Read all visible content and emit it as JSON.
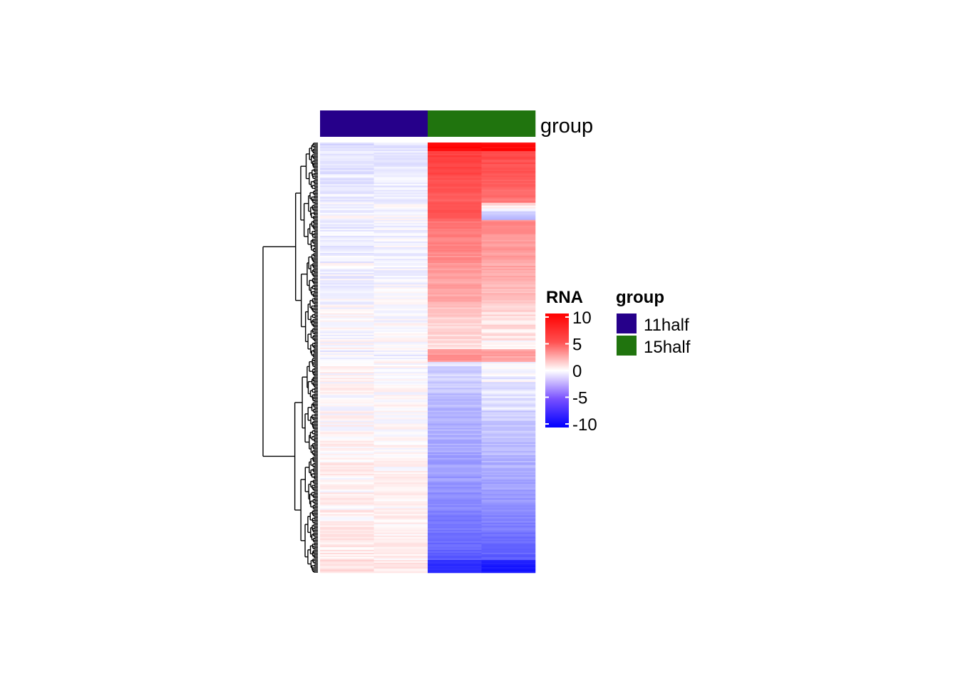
{
  "chart_data": {
    "type": "heatmap",
    "title": "",
    "xlabel": "",
    "ylabel": "",
    "columns": [
      {
        "group": "11half"
      },
      {
        "group": "11half"
      },
      {
        "group": "15half"
      },
      {
        "group": "15half"
      }
    ],
    "annotation": {
      "label": "group",
      "legend_title": "group",
      "levels": [
        {
          "name": "11half",
          "color": "#26008a"
        },
        {
          "name": "15half",
          "color": "#20740e"
        }
      ]
    },
    "color_scale": {
      "title": "RNA",
      "range": [
        -10,
        10
      ],
      "ticks": [
        10,
        5,
        0,
        -5,
        -10
      ],
      "colors": {
        "low": "#0000ff",
        "mid": "#ffffff",
        "high": "#ff0000"
      }
    },
    "row_count": 300,
    "row_profile": {
      "description_free": true,
      "segments": [
        {
          "from": 0.0,
          "to": 0.02,
          "c3": [
            9,
            10
          ],
          "c4": [
            9,
            10
          ]
        },
        {
          "from": 0.02,
          "to": 0.14,
          "c3": [
            7,
            5.5
          ],
          "c4": [
            6.5,
            4.5
          ]
        },
        {
          "from": 0.14,
          "to": 0.18,
          "c3": [
            6.5,
            5.5
          ],
          "c4": [
            1,
            -2
          ]
        },
        {
          "from": 0.18,
          "to": 0.38,
          "c3": [
            4.5,
            2
          ],
          "c4": [
            3.5,
            1.5
          ]
        },
        {
          "from": 0.38,
          "to": 0.48,
          "c3": [
            1.5,
            0.5
          ],
          "c4": [
            1,
            0.3
          ]
        },
        {
          "from": 0.48,
          "to": 0.51,
          "c3": [
            3,
            3
          ],
          "c4": [
            2.5,
            2.5
          ]
        },
        {
          "from": 0.51,
          "to": 0.62,
          "c3": [
            -0.8,
            -1.8
          ],
          "c4": [
            -0.2,
            -0.6
          ]
        },
        {
          "from": 0.62,
          "to": 0.8,
          "c3": [
            -1.8,
            -3.0
          ],
          "c4": [
            -1.0,
            -2.5
          ]
        },
        {
          "from": 0.8,
          "to": 0.97,
          "c3": [
            -3.0,
            -5.5
          ],
          "c4": [
            -2.5,
            -5.5
          ]
        },
        {
          "from": 0.97,
          "to": 1.0,
          "c3": [
            -7.5,
            -8
          ],
          "c4": [
            -8,
            -9
          ]
        }
      ]
    },
    "dendrogram": "rows"
  }
}
